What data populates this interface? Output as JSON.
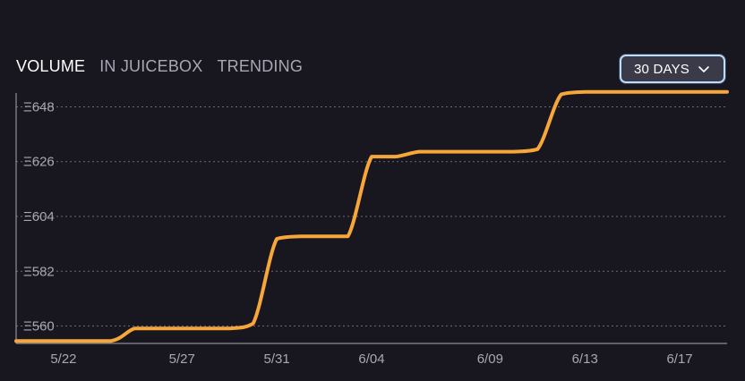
{
  "tabs": [
    {
      "label": "VOLUME",
      "active": true
    },
    {
      "label": "IN JUICEBOX",
      "active": false
    },
    {
      "label": "TRENDING",
      "active": false
    }
  ],
  "range_selector": {
    "label": "30 DAYS",
    "icon": "chevron-down-icon"
  },
  "colors": {
    "background": "#18171f",
    "line": "#f7a63a",
    "axis": "#a9a7b3",
    "grid": "#6b6977",
    "select_border": "#b9dcff"
  },
  "chart_data": {
    "type": "line",
    "grid": true,
    "ytick_labels": [
      "Ξ560",
      "Ξ582",
      "Ξ604",
      "Ξ626",
      "Ξ648"
    ],
    "yticks": [
      560,
      582,
      604,
      626,
      648
    ],
    "xtick_labels": [
      "5/22",
      "5/27",
      "5/31",
      "6/04",
      "6/09",
      "6/13",
      "6/17"
    ],
    "xticks": [
      "2022-05-22",
      "2022-05-27",
      "2022-05-31",
      "2022-06-04",
      "2022-06-09",
      "2022-06-13",
      "2022-06-17"
    ],
    "xlim": [
      "2022-05-20",
      "2022-06-19"
    ],
    "ylim": [
      553,
      655
    ],
    "series": [
      {
        "points": [
          {
            "x": "2022-05-20",
            "y": 554
          },
          {
            "x": "2022-05-22",
            "y": 554
          },
          {
            "x": "2022-05-24",
            "y": 554
          },
          {
            "x": "2022-05-25",
            "y": 559
          },
          {
            "x": "2022-05-26",
            "y": 559
          },
          {
            "x": "2022-05-28",
            "y": 559
          },
          {
            "x": "2022-05-29",
            "y": 559
          },
          {
            "x": "2022-05-30",
            "y": 561
          },
          {
            "x": "2022-05-31",
            "y": 595
          },
          {
            "x": "2022-06-01",
            "y": 596
          },
          {
            "x": "2022-06-02",
            "y": 596
          },
          {
            "x": "2022-06-03",
            "y": 596
          },
          {
            "x": "2022-06-04",
            "y": 628
          },
          {
            "x": "2022-06-05",
            "y": 628
          },
          {
            "x": "2022-06-06",
            "y": 630
          },
          {
            "x": "2022-06-07",
            "y": 630
          },
          {
            "x": "2022-06-08",
            "y": 630
          },
          {
            "x": "2022-06-09",
            "y": 630
          },
          {
            "x": "2022-06-10",
            "y": 630
          },
          {
            "x": "2022-06-11",
            "y": 631
          },
          {
            "x": "2022-06-12",
            "y": 653
          },
          {
            "x": "2022-06-13",
            "y": 654
          },
          {
            "x": "2022-06-14",
            "y": 654
          },
          {
            "x": "2022-06-15",
            "y": 654
          },
          {
            "x": "2022-06-16",
            "y": 654
          },
          {
            "x": "2022-06-17",
            "y": 654
          },
          {
            "x": "2022-06-18",
            "y": 654
          },
          {
            "x": "2022-06-19",
            "y": 654
          }
        ]
      }
    ]
  }
}
